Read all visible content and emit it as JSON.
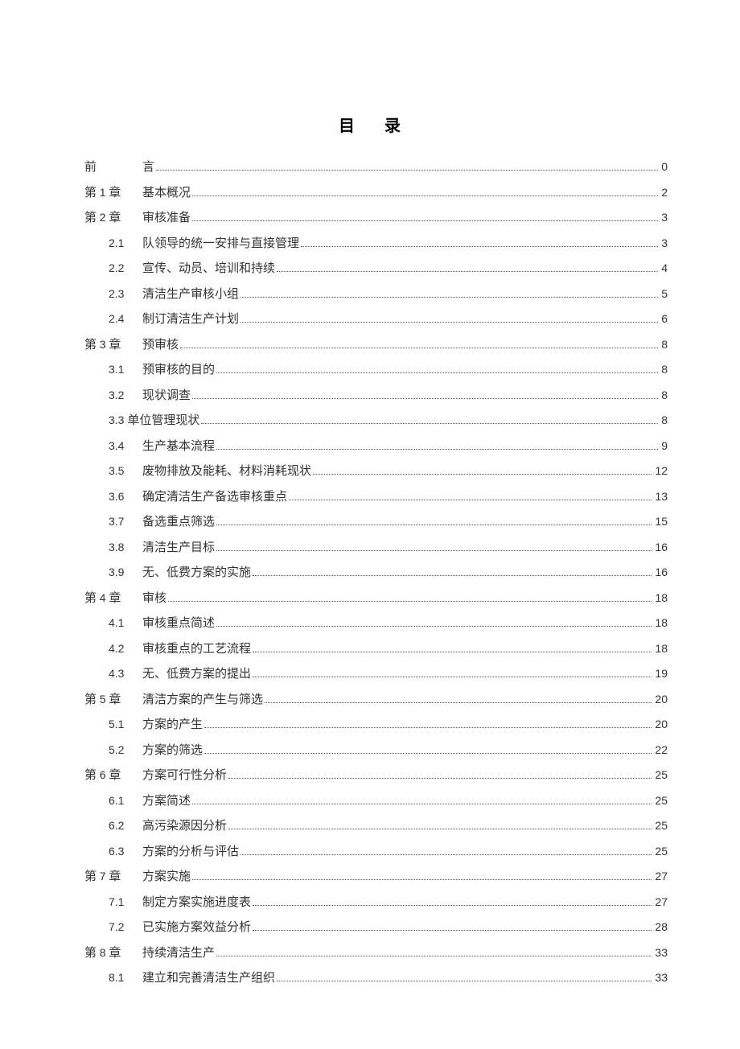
{
  "title": "目 录",
  "entries": [
    {
      "level": 0,
      "label_num": "",
      "label_cn": "前",
      "text": "言",
      "page": "0",
      "special": "preface"
    },
    {
      "level": 0,
      "label_num": "1",
      "label_cn": "第章",
      "text": "基本概况",
      "page": "2"
    },
    {
      "level": 0,
      "label_num": "2",
      "label_cn": "第章",
      "text": "审核准备",
      "page": "3"
    },
    {
      "level": 1,
      "label_num": "2.1",
      "text": "队领导的统一安排与直接管理",
      "page": "3"
    },
    {
      "level": 1,
      "label_num": "2.2",
      "text": "宣传、动员、培训和持续",
      "page": "4"
    },
    {
      "level": 1,
      "label_num": "2.3",
      "text": "清洁生产审核小组",
      "page": "5"
    },
    {
      "level": 1,
      "label_num": "2.4",
      "text": "制订清洁生产计划",
      "page": "6"
    },
    {
      "level": 0,
      "label_num": "3",
      "label_cn": "第章",
      "text": "预审核",
      "page": "8"
    },
    {
      "level": 1,
      "label_num": "3.1",
      "text": "预审核的目的",
      "page": "8"
    },
    {
      "level": 1,
      "label_num": "3.2",
      "text": "现状调查",
      "page": "8"
    },
    {
      "level": 1,
      "label_num": "3.3",
      "text": "单位管理现状",
      "page": "8",
      "special": "combined"
    },
    {
      "level": 1,
      "label_num": "3.4",
      "text": "生产基本流程",
      "page": "9"
    },
    {
      "level": 1,
      "label_num": "3.5",
      "text": "废物排放及能耗、材料消耗现状",
      "page": "12"
    },
    {
      "level": 1,
      "label_num": "3.6",
      "text": "确定清洁生产备选审核重点",
      "page": "13"
    },
    {
      "level": 1,
      "label_num": "3.7",
      "text": "备选重点筛选",
      "page": "15"
    },
    {
      "level": 1,
      "label_num": "3.8",
      "text": "清洁生产目标",
      "page": "16"
    },
    {
      "level": 1,
      "label_num": "3.9",
      "text": "无、低费方案的实施",
      "page": "16"
    },
    {
      "level": 0,
      "label_num": "4",
      "label_cn": "第章",
      "text": "审核",
      "page": "18"
    },
    {
      "level": 1,
      "label_num": "4.1",
      "text": "审核重点简述",
      "page": "18"
    },
    {
      "level": 1,
      "label_num": "4.2",
      "text": "审核重点的工艺流程",
      "page": "18"
    },
    {
      "level": 1,
      "label_num": "4.3",
      "text": "无、低费方案的提出",
      "page": "19"
    },
    {
      "level": 0,
      "label_num": "5",
      "label_cn": "第章",
      "text": "清洁方案的产生与筛选",
      "page": "20"
    },
    {
      "level": 1,
      "label_num": "5.1",
      "text": "方案的产生",
      "page": "20"
    },
    {
      "level": 1,
      "label_num": "5.2",
      "text": "方案的筛选",
      "page": "22"
    },
    {
      "level": 0,
      "label_num": "6",
      "label_cn": "第章",
      "text": "方案可行性分析",
      "page": "25"
    },
    {
      "level": 1,
      "label_num": "6.1",
      "text": "方案简述",
      "page": "25"
    },
    {
      "level": 1,
      "label_num": "6.2",
      "text": "高污染源因分析",
      "page": "25"
    },
    {
      "level": 1,
      "label_num": "6.3",
      "text": "方案的分析与评估",
      "page": "25"
    },
    {
      "level": 0,
      "label_num": "7",
      "label_cn": "第章",
      "text": "方案实施",
      "page": "27"
    },
    {
      "level": 1,
      "label_num": "7.1",
      "text": "制定方案实施进度表",
      "page": "27"
    },
    {
      "level": 1,
      "label_num": "7.2",
      "text": "已实施方案效益分析",
      "page": "28"
    },
    {
      "level": 0,
      "label_num": "8",
      "label_cn": "第章",
      "text": "持续清洁生产",
      "page": "33"
    },
    {
      "level": 1,
      "label_num": "8.1",
      "text": "建立和完善清洁生产组织",
      "page": "33"
    }
  ]
}
